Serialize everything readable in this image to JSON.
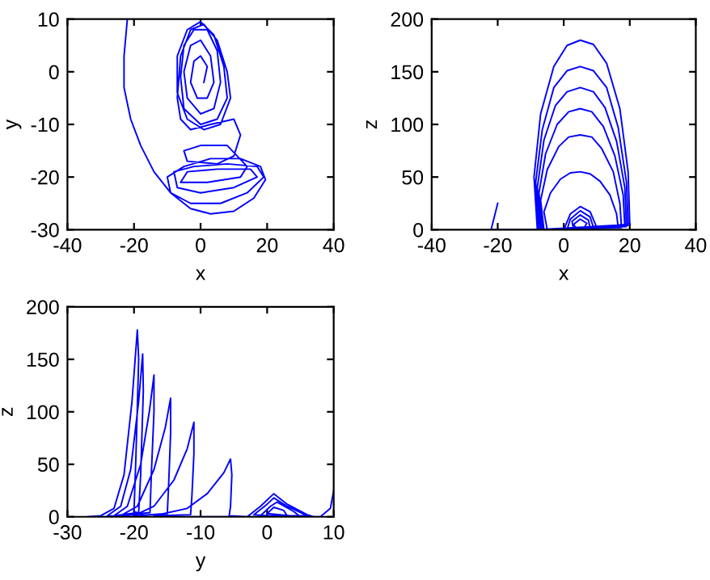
{
  "chart_data": [
    {
      "type": "line",
      "xlabel": "x",
      "ylabel": "y",
      "xlim": [
        -40,
        40
      ],
      "xticks": [
        -40,
        -20,
        0,
        20,
        40
      ],
      "ylim": [
        -30,
        10
      ],
      "yticks": [
        -30,
        -20,
        -10,
        0,
        10
      ],
      "grid": false,
      "legend": false,
      "series": [
        {
          "color": "#0000ff",
          "x": [
            -22,
            -23,
            -23,
            -21,
            -18,
            -14,
            -9,
            -3,
            3,
            10,
            16,
            19.5,
            18,
            12,
            3,
            -5,
            -10,
            -9,
            -3,
            6,
            14,
            19,
            17,
            8,
            -2,
            -8,
            -7,
            0,
            10,
            17,
            15,
            5,
            -4,
            -6,
            2,
            12,
            14,
            8,
            0,
            -5,
            -4,
            5,
            10,
            12,
            10,
            3,
            -3,
            -6,
            -7,
            -6,
            -3,
            1,
            5,
            8,
            9,
            6,
            1,
            -4,
            -7,
            -7,
            -4,
            0,
            4,
            7,
            8,
            5,
            0,
            -5,
            -6,
            -5,
            -2,
            2,
            5,
            6,
            4,
            0,
            -4,
            -5,
            -3,
            0,
            3,
            4,
            2,
            -1,
            -3,
            -2,
            0,
            2,
            1
          ],
          "values": [
            10,
            3,
            -3,
            -9,
            -14,
            -19,
            -23,
            -26,
            -27,
            -26.5,
            -24,
            -20.5,
            -18,
            -16.5,
            -16.5,
            -18,
            -20,
            -23,
            -25,
            -25,
            -23,
            -20,
            -18,
            -17.5,
            -18,
            -19,
            -22,
            -23,
            -22,
            -20,
            -18.5,
            -18.5,
            -19,
            -21,
            -21,
            -20,
            -18,
            -14,
            -14,
            -15,
            -17,
            -17.5,
            -16,
            -12,
            -9,
            -10,
            -11,
            -9,
            -5,
            3,
            8,
            9,
            6,
            0,
            -5,
            -10,
            -11,
            -9,
            -4,
            3,
            8,
            9.5,
            7,
            1,
            -5,
            -9,
            -10,
            -7,
            -1,
            5,
            8,
            8,
            4,
            -2,
            -7,
            -8,
            -5,
            0,
            5,
            6,
            3,
            -2,
            -5,
            -5,
            -2,
            2,
            3,
            1,
            -2
          ]
        }
      ]
    },
    {
      "type": "line",
      "xlabel": "x",
      "ylabel": "z",
      "xlim": [
        -40,
        40
      ],
      "xticks": [
        -40,
        -20,
        0,
        20,
        40
      ],
      "ylim": [
        0,
        200
      ],
      "yticks": [
        0,
        50,
        100,
        150,
        200
      ],
      "grid": false,
      "legend": false,
      "series": [
        {
          "color": "#0000ff",
          "x": [
            -20,
            -22,
            -15,
            -8,
            -9,
            -7,
            -3,
            1,
            5,
            9,
            13,
            17,
            19.5,
            20,
            -7.5,
            -8.5,
            -6.5,
            -3,
            1,
            5,
            9,
            13,
            16.5,
            19,
            19.5,
            -7,
            -8,
            -6,
            -2.5,
            1,
            5,
            9,
            12.5,
            16,
            18.5,
            19,
            -6.5,
            -7.5,
            -5.5,
            -2,
            1.5,
            5,
            8.5,
            12,
            15.5,
            18,
            18.5,
            -6,
            -7,
            -5,
            -1.5,
            1.5,
            5,
            8.5,
            11.5,
            15,
            17,
            17.5,
            -5,
            -6,
            -4,
            -1,
            2,
            5,
            8,
            11,
            14,
            16,
            16.5,
            0,
            2,
            5,
            8,
            10,
            8,
            1,
            2,
            5,
            8,
            9,
            3,
            2.5,
            5,
            7.5,
            8,
            4,
            3,
            5,
            7,
            6
          ],
          "values": [
            25,
            0,
            0,
            0,
            50,
            110,
            155,
            175,
            180,
            176,
            158,
            115,
            55,
            5,
            0,
            45,
            95,
            135,
            151,
            155,
            151,
            135,
            97,
            45,
            4,
            0,
            40,
            85,
            118,
            131,
            135,
            131,
            116,
            84,
            40,
            3,
            0,
            35,
            72,
            100,
            112,
            115,
            112,
            98,
            70,
            33,
            3,
            0,
            28,
            57,
            79,
            88,
            90,
            88,
            77,
            55,
            25,
            2,
            0,
            17,
            35,
            48,
            54,
            55,
            53,
            46,
            33,
            15,
            2,
            0,
            15,
            22,
            17,
            2,
            0,
            0,
            10,
            18,
            12,
            2,
            0,
            8,
            14,
            9,
            1,
            0,
            5,
            10,
            6,
            1
          ]
        }
      ]
    },
    {
      "type": "line",
      "xlabel": "y",
      "ylabel": "z",
      "xlim": [
        -30,
        10
      ],
      "xticks": [
        -30,
        -20,
        -10,
        0,
        10
      ],
      "ylim": [
        0,
        200
      ],
      "yticks": [
        0,
        50,
        100,
        150,
        200
      ],
      "grid": false,
      "legend": false,
      "series": [
        {
          "color": "#0000ff",
          "x": [
            10,
            9.5,
            8,
            0,
            -15,
            -27,
            -25,
            -23,
            -21.5,
            -20.3,
            -19.5,
            -19.3,
            -19.7,
            -20,
            -18,
            -24,
            -22,
            -20.5,
            -19.3,
            -18.7,
            -18.6,
            -19,
            -19.3,
            -23,
            -21,
            -19,
            -17.7,
            -17,
            -17,
            -17.4,
            -17.6,
            -22,
            -19.5,
            -17,
            -15.3,
            -14.5,
            -14.5,
            -14.8,
            -15,
            -20,
            -17,
            -14,
            -12,
            -11,
            -11,
            -11.3,
            -11.5,
            -17,
            -12,
            -9,
            -6.5,
            -5.5,
            -5.3,
            -5.5,
            -5.7,
            -3,
            -1,
            1,
            3,
            6,
            7,
            2,
            -2,
            0,
            1,
            3,
            6,
            -1,
            0.5,
            1.5,
            4,
            5,
            0,
            1,
            2.5,
            3
          ],
          "values": [
            25,
            8,
            0,
            0,
            0,
            0,
            1,
            8,
            40,
            110,
            178,
            150,
            60,
            5,
            0,
            1,
            10,
            45,
            110,
            155,
            120,
            40,
            4,
            1,
            10,
            50,
            100,
            135,
            100,
            40,
            4,
            1,
            10,
            45,
            85,
            113,
            80,
            30,
            3,
            1,
            10,
            35,
            65,
            90,
            60,
            20,
            2,
            1,
            8,
            22,
            42,
            55,
            40,
            10,
            1,
            0,
            10,
            22,
            12,
            2,
            0,
            0,
            2,
            12,
            18,
            10,
            1,
            1,
            10,
            14,
            5,
            0,
            3,
            9,
            6,
            1
          ]
        }
      ]
    }
  ]
}
